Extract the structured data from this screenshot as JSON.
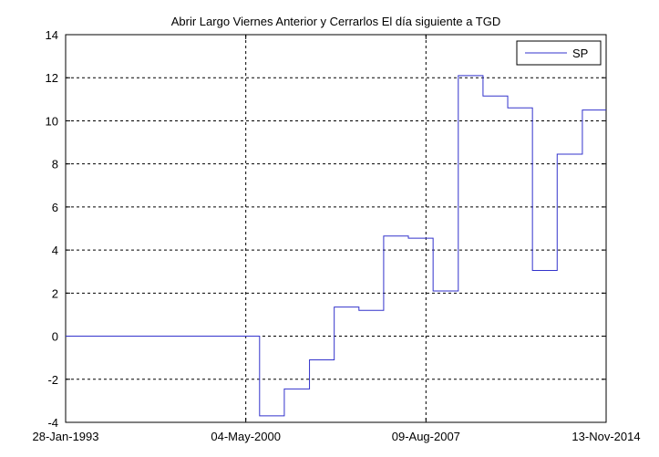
{
  "chart_data": {
    "type": "line",
    "title": "Abrir Largo Viernes Anterior y Cerrarlos El día siguiente a TGD",
    "xlabel": "",
    "ylabel": "",
    "x_tick_labels": [
      "28-Jan-1993",
      "04-May-2000",
      "09-Aug-2007",
      "13-Nov-2014"
    ],
    "y_ticks": [
      -4,
      -2,
      0,
      2,
      4,
      6,
      8,
      10,
      12,
      14
    ],
    "xlim": [
      "1993-01-28",
      "2014-11-13"
    ],
    "ylim": [
      -4,
      14
    ],
    "grid": true,
    "legend_position": "top-right",
    "line_color": "#3333cc",
    "series": [
      {
        "name": "SP",
        "x": [
          "1993-01-28",
          "2000-11-23",
          "2001-11-22",
          "2002-11-28",
          "2003-11-27",
          "2004-11-25",
          "2005-11-24",
          "2006-11-23",
          "2007-11-22",
          "2008-11-27",
          "2009-11-26",
          "2010-11-25",
          "2011-11-24",
          "2012-11-22",
          "2013-11-28",
          "2014-11-13"
        ],
        "y": [
          0,
          -3.7,
          -2.45,
          -1.1,
          1.35,
          1.2,
          4.65,
          4.55,
          2.1,
          12.1,
          11.15,
          10.6,
          3.05,
          8.45,
          10.5,
          10.5
        ]
      }
    ]
  }
}
